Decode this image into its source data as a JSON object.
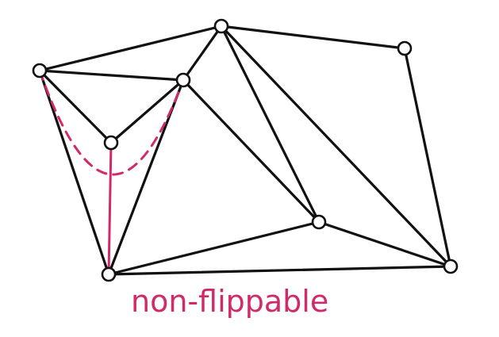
{
  "colors": {
    "edge": "#111111",
    "highlight": "#d12a6a",
    "vertex_fill": "#ffffff"
  },
  "caption": {
    "text": "non-flippable"
  }
}
